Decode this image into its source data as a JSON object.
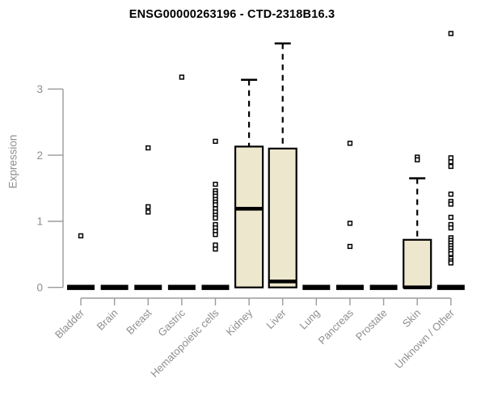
{
  "chart_data": {
    "type": "boxplot",
    "title": "ENSG00000263196 - CTD-2318B16.3",
    "ylabel": "Expression",
    "xlabel": "",
    "ylim": [
      0,
      3.9
    ],
    "yticks": [
      0,
      1,
      2,
      3
    ],
    "grid": false,
    "legend": "none",
    "categories": [
      "Bladder",
      "Brain",
      "Breast",
      "Gastric",
      "Hematopoietic cells",
      "Kidney",
      "Liver",
      "Lung",
      "Pancreas",
      "Prostate",
      "Skin",
      "Unknown / Other"
    ],
    "series": [
      {
        "name": "Bladder",
        "q1": 0,
        "median": 0,
        "q3": 0,
        "whisker_low": 0,
        "whisker_high": 0,
        "outliers": [
          0.78
        ]
      },
      {
        "name": "Brain",
        "q1": 0,
        "median": 0,
        "q3": 0,
        "whisker_low": 0,
        "whisker_high": 0,
        "outliers": []
      },
      {
        "name": "Breast",
        "q1": 0,
        "median": 0,
        "q3": 0,
        "whisker_low": 0,
        "whisker_high": 0,
        "outliers": [
          2.11,
          1.22,
          1.14
        ]
      },
      {
        "name": "Gastric",
        "q1": 0,
        "median": 0,
        "q3": 0,
        "whisker_low": 0,
        "whisker_high": 0,
        "outliers": [
          3.18
        ]
      },
      {
        "name": "Hematopoietic cells",
        "q1": 0,
        "median": 0,
        "q3": 0,
        "whisker_low": 0,
        "whisker_high": 0,
        "outliers": [
          2.21,
          1.56,
          1.46,
          1.42,
          1.38,
          1.33,
          1.29,
          1.25,
          1.19,
          1.14,
          1.09,
          1.05,
          0.95,
          0.9,
          0.85,
          0.8,
          0.64,
          0.58
        ]
      },
      {
        "name": "Kidney",
        "q1": 0,
        "median": 1.19,
        "q3": 2.13,
        "whisker_low": 0,
        "whisker_high": 3.14,
        "outliers": []
      },
      {
        "name": "Liver",
        "q1": 0,
        "median": 0.09,
        "q3": 2.1,
        "whisker_low": 0,
        "whisker_high": 3.69,
        "outliers": []
      },
      {
        "name": "Lung",
        "q1": 0,
        "median": 0,
        "q3": 0,
        "whisker_low": 0,
        "whisker_high": 0,
        "outliers": []
      },
      {
        "name": "Pancreas",
        "q1": 0,
        "median": 0,
        "q3": 0,
        "whisker_low": 0,
        "whisker_high": 0,
        "outliers": [
          2.18,
          0.97,
          0.62
        ]
      },
      {
        "name": "Prostate",
        "q1": 0,
        "median": 0,
        "q3": 0,
        "whisker_low": 0,
        "whisker_high": 0,
        "outliers": []
      },
      {
        "name": "Skin",
        "q1": 0,
        "median": 0,
        "q3": 0.72,
        "whisker_low": 0,
        "whisker_high": 1.65,
        "outliers": [
          1.97,
          1.93
        ]
      },
      {
        "name": "Unknown / Other",
        "q1": 0,
        "median": 0,
        "q3": 0,
        "whisker_low": 0,
        "whisker_high": 0,
        "outliers": [
          3.84,
          1.96,
          1.9,
          1.83,
          1.41,
          1.3,
          1.26,
          1.06,
          0.95,
          0.9,
          0.75,
          0.71,
          0.67,
          0.63,
          0.59,
          0.55,
          0.51,
          0.44,
          0.4,
          0.37
        ]
      }
    ],
    "colors": {
      "box_fill": "#ede8cd",
      "box_border": "#000000",
      "median": "#000000",
      "whisker": "#000000",
      "outlier_fill": "#ffffff",
      "outlier_border": "#000000",
      "axis_line": "#9b9b9b",
      "axis_text": "#8e8e8e",
      "title_text": "#000000",
      "background": "#ffffff"
    }
  }
}
